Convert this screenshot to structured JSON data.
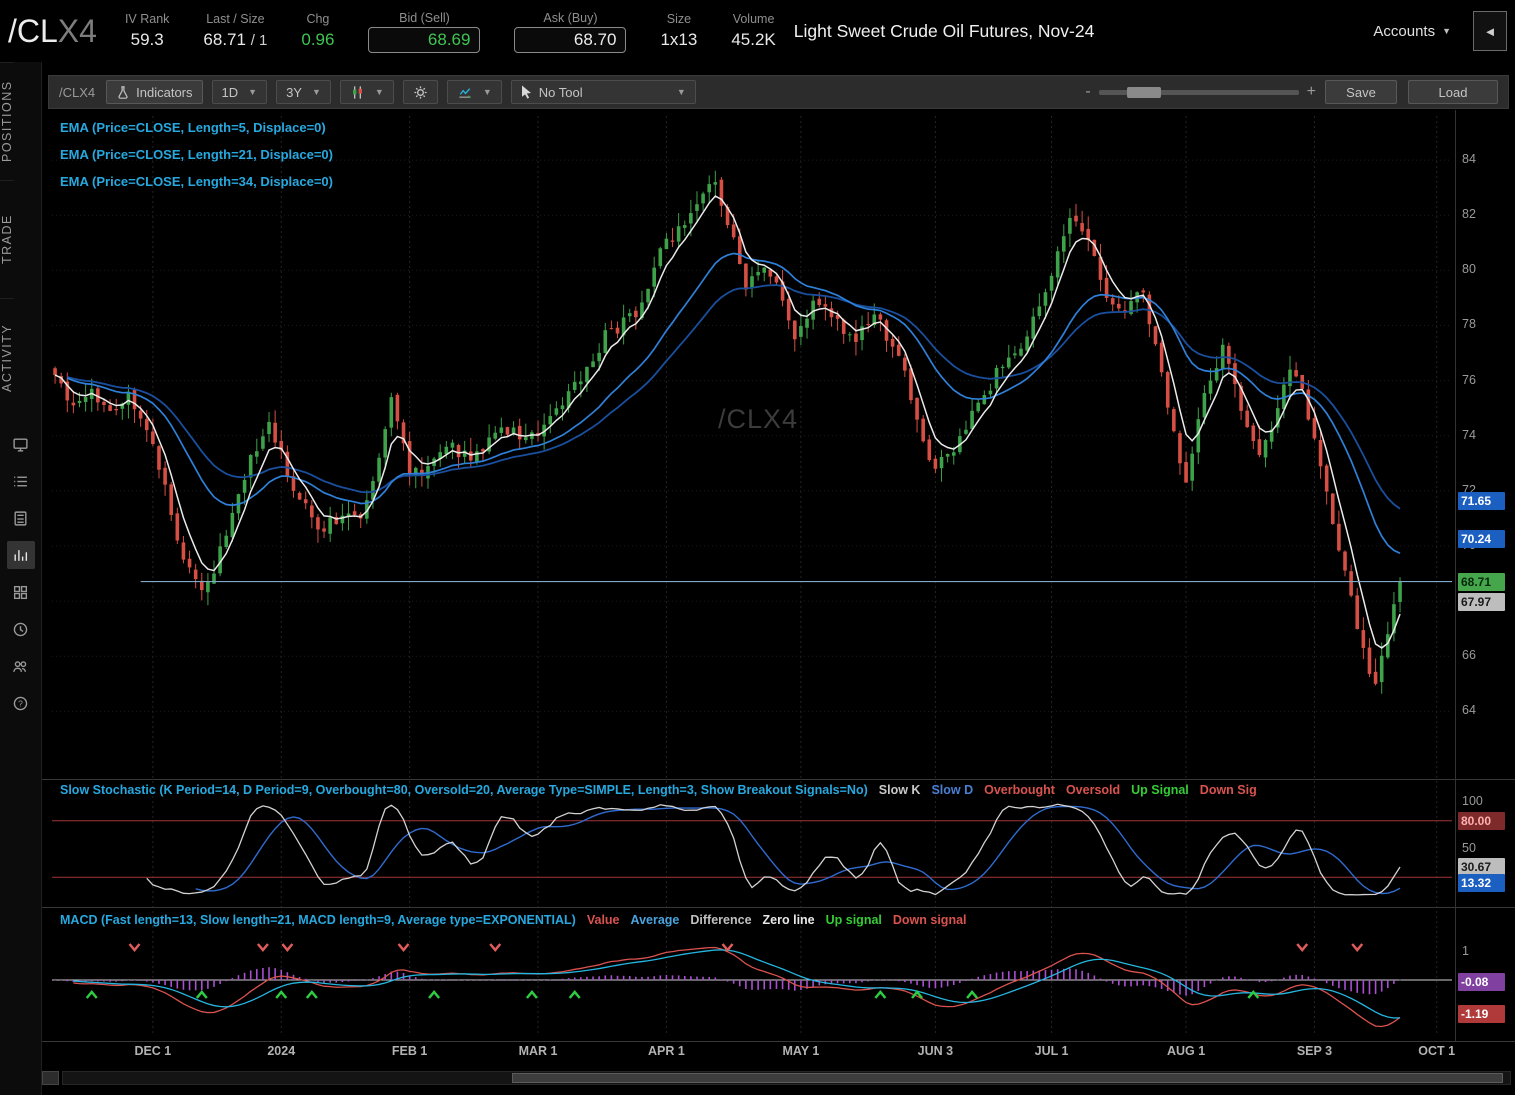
{
  "header": {
    "symbol_main": "/CL",
    "symbol_suffix": "X4",
    "iv_rank_label": "IV Rank",
    "iv_rank": "59.3",
    "last_label": "Last / Size",
    "last": "68.71",
    "last_size": "/ 1",
    "chg_label": "Chg",
    "chg": "0.96",
    "bid_label": "Bid (Sell)",
    "bid": "68.69",
    "ask_label": "Ask (Buy)",
    "ask": "68.70",
    "size_label": "Size",
    "size": "1x13",
    "volume_label": "Volume",
    "volume": "45.2K",
    "description": "Light Sweet Crude Oil Futures, Nov-24",
    "accounts_label": "Accounts",
    "collapse_glyph": "◄"
  },
  "sidebar": {
    "tabs": [
      {
        "label": "POSITIONS"
      },
      {
        "label": "TRADE"
      },
      {
        "label": "ACTIVITY"
      }
    ],
    "icons": [
      "monitor-icon",
      "list-icon",
      "calculator-icon",
      "chart-icon",
      "grid-icon",
      "clock-icon",
      "people-icon",
      "help-icon"
    ]
  },
  "toolbar": {
    "symbol": "/CLX4",
    "indicators": "Indicators",
    "timeframe": "1D",
    "range": "3Y",
    "tool": "No Tool",
    "zoom_minus": "-",
    "zoom_plus": "+",
    "save": "Save",
    "load": "Load"
  },
  "studies": {
    "ema_labels": [
      "EMA (Price=CLOSE, Length=5, Displace=0)",
      "EMA (Price=CLOSE, Length=21, Displace=0)",
      "EMA (Price=CLOSE, Length=34, Displace=0)"
    ],
    "watermark": "/CLX4"
  },
  "stoch_panel": {
    "title": "Slow Stochastic (K Period=14, D Period=9, Overbought=80, Oversold=20, Average Type=SIMPLE, Length=3, Show Breakout Signals=No)",
    "legend": [
      {
        "text": "Slow K",
        "color": "#c9c9c9"
      },
      {
        "text": "Slow D",
        "color": "#4a7fd4"
      },
      {
        "text": "Overbought",
        "color": "#d9534f"
      },
      {
        "text": "Oversold",
        "color": "#d9534f"
      },
      {
        "text": "Up Signal",
        "color": "#35cc35"
      },
      {
        "text": "Down Sig",
        "color": "#d9534f"
      }
    ]
  },
  "macd_panel": {
    "title": "MACD (Fast length=13, Slow length=21, MACD length=9, Average type=EXPONENTIAL)",
    "legend": [
      {
        "text": "Value",
        "color": "#d9534f"
      },
      {
        "text": "Average",
        "color": "#4aa3df"
      },
      {
        "text": "Difference",
        "color": "#c0c0c0"
      },
      {
        "text": "Zero line",
        "color": "#e8e8e8"
      },
      {
        "text": "Up signal",
        "color": "#35cc35"
      },
      {
        "text": "Down signal",
        "color": "#d9534f"
      }
    ]
  },
  "axes": {
    "price_ticks": [
      84,
      82,
      80,
      78,
      76,
      74,
      72,
      70,
      68,
      66,
      64
    ],
    "price_badges": [
      {
        "text": "71.65",
        "value": 71.65,
        "bg": "#1b5fc1",
        "fg": "#ffffff"
      },
      {
        "text": "70.24",
        "value": 70.24,
        "bg": "#1b5fc1",
        "fg": "#ffffff"
      },
      {
        "text": "68.71",
        "value": 68.71,
        "bg": "#46a64b",
        "fg": "#06260d"
      },
      {
        "text": "67.97",
        "value": 67.97,
        "bg": "#bdbdbd",
        "fg": "#1a1a1a"
      }
    ],
    "stoch_ticks": [
      {
        "text": "100",
        "value": 100
      },
      {
        "text": "50",
        "value": 50
      }
    ],
    "stoch_badges": [
      {
        "text": "80.00",
        "value": 80,
        "bg": "#7e2a2a",
        "fg": "#ffb0b0"
      },
      {
        "text": "30.67",
        "value": 30.67,
        "bg": "#bdbdbd",
        "fg": "#1a1a1a"
      },
      {
        "text": "13.32",
        "value": 13.32,
        "bg": "#1b5fc1",
        "fg": "#ffffff"
      }
    ],
    "macd_ticks": [
      {
        "text": "1",
        "value": 1
      }
    ],
    "macd_badges": [
      {
        "text": "-0.08",
        "value": -0.08,
        "bg": "#8040a0",
        "fg": "#ffffff"
      },
      {
        "text": "-1.19",
        "value": -1.19,
        "bg": "#b03a3a",
        "fg": "#ffffff"
      }
    ]
  },
  "chart_data": {
    "type": "candlestick",
    "symbol": "/CLX4",
    "title": "Light Sweet Crude Oil Futures, Nov-24",
    "timeframe": "1D",
    "range": "3Y",
    "ylim": [
      61.8,
      85.6
    ],
    "price_line": 68.71,
    "last_close": 68.71,
    "total_days": 221,
    "domain_days": 229,
    "anchors": [
      [
        0,
        76.2
      ],
      [
        3,
        75.1
      ],
      [
        6,
        75.7
      ],
      [
        9,
        74.9
      ],
      [
        12,
        75.6
      ],
      [
        16,
        73.7
      ],
      [
        20,
        70.2
      ],
      [
        24,
        68.4
      ],
      [
        26,
        69.0
      ],
      [
        29,
        71.2
      ],
      [
        32,
        73.3
      ],
      [
        35,
        74.5
      ],
      [
        39,
        72.0
      ],
      [
        43,
        70.6
      ],
      [
        47,
        71.1
      ],
      [
        50,
        71.0
      ],
      [
        53,
        73.2
      ],
      [
        55,
        75.4
      ],
      [
        58,
        72.6
      ],
      [
        61,
        72.9
      ],
      [
        64,
        73.6
      ],
      [
        68,
        73.1
      ],
      [
        73,
        74.3
      ],
      [
        79,
        74.0
      ],
      [
        83,
        75.1
      ],
      [
        87,
        76.5
      ],
      [
        91,
        77.9
      ],
      [
        95,
        78.3
      ],
      [
        99,
        80.8
      ],
      [
        102,
        81.6
      ],
      [
        105,
        82.4
      ],
      [
        108,
        83.2
      ],
      [
        111,
        81.2
      ],
      [
        113,
        79.3
      ],
      [
        116,
        80.1
      ],
      [
        119,
        78.9
      ],
      [
        121,
        77.5
      ],
      [
        124,
        78.9
      ],
      [
        127,
        78.3
      ],
      [
        131,
        77.4
      ],
      [
        134,
        78.4
      ],
      [
        138,
        76.9
      ],
      [
        142,
        73.8
      ],
      [
        144,
        72.8
      ],
      [
        147,
        73.4
      ],
      [
        151,
        75.2
      ],
      [
        155,
        76.5
      ],
      [
        159,
        77.6
      ],
      [
        163,
        79.8
      ],
      [
        166,
        81.9
      ],
      [
        169,
        81.1
      ],
      [
        172,
        79.0
      ],
      [
        175,
        78.5
      ],
      [
        178,
        79.2
      ],
      [
        181,
        76.3
      ],
      [
        184,
        73.0
      ],
      [
        185,
        72.3
      ],
      [
        187,
        74.6
      ],
      [
        189,
        76.0
      ],
      [
        191,
        77.3
      ],
      [
        194,
        74.9
      ],
      [
        197,
        73.3
      ],
      [
        200,
        75.0
      ],
      [
        202,
        76.4
      ],
      [
        204,
        75.7
      ],
      [
        206,
        73.9
      ],
      [
        209,
        70.8
      ],
      [
        212,
        68.2
      ],
      [
        214,
        66.3
      ],
      [
        216,
        65.0
      ],
      [
        218,
        66.8
      ],
      [
        220,
        68.71
      ]
    ],
    "months": [
      {
        "label": "DEC 1",
        "day": 16
      },
      {
        "label": "2024",
        "day": 37
      },
      {
        "label": "FEB 1",
        "day": 58
      },
      {
        "label": "MAR 1",
        "day": 79
      },
      {
        "label": "APR 1",
        "day": 100
      },
      {
        "label": "MAY 1",
        "day": 122
      },
      {
        "label": "JUN 3",
        "day": 144
      },
      {
        "label": "JUL 1",
        "day": 163
      },
      {
        "label": "AUG 1",
        "day": 185
      },
      {
        "label": "SEP 3",
        "day": 206
      },
      {
        "label": "OCT 1",
        "day": 226
      }
    ],
    "ema_lengths": [
      5,
      21,
      34
    ],
    "stochastic": {
      "k_period": 14,
      "d_period": 9,
      "smooth": 3,
      "overbought": 80,
      "oversold": 20
    },
    "macd": {
      "fast": 13,
      "slow": 21,
      "length": 9
    },
    "up_signal_days": [
      6,
      24,
      37,
      42,
      62,
      78,
      85,
      135,
      141,
      150,
      196
    ],
    "down_signal_days": [
      13,
      34,
      38,
      57,
      72,
      110,
      204,
      213
    ],
    "colors": {
      "up": "#3da24a",
      "down": "#d64f44",
      "ema5": "#ebebeb",
      "ema21": "#2f80d8",
      "ema34": "#1a4f9e",
      "slow_k": "#d2d2d2",
      "slow_d": "#2f6bd0",
      "ob_os": "#a03535",
      "macd_value": "#d9534f",
      "macd_avg": "#25b6e0",
      "macd_hist": "#a94fd0",
      "zero": "#cfcfcf",
      "price_line": "#7fa8c8",
      "grid": "#242424",
      "watermark": "#3c3c3c",
      "up_signal": "#2ecc40",
      "down_signal": "#e05c5c"
    }
  }
}
